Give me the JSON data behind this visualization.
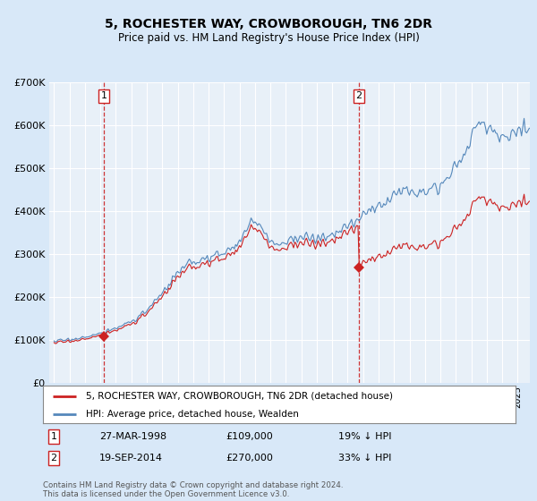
{
  "title": "5, ROCHESTER WAY, CROWBOROUGH, TN6 2DR",
  "subtitle": "Price paid vs. HM Land Registry's House Price Index (HPI)",
  "legend_line1": "5, ROCHESTER WAY, CROWBOROUGH, TN6 2DR (detached house)",
  "legend_line2": "HPI: Average price, detached house, Wealden",
  "annotation1": {
    "label": "1",
    "date": "27-MAR-1998",
    "price": 109000,
    "note": "19% ↓ HPI",
    "x_year": 1998.23
  },
  "annotation2": {
    "label": "2",
    "date": "19-SEP-2014",
    "price": 270000,
    "note": "33% ↓ HPI",
    "x_year": 2014.72
  },
  "footer": "Contains HM Land Registry data © Crown copyright and database right 2024.\nThis data is licensed under the Open Government Licence v3.0.",
  "hpi_color": "#5588bb",
  "price_color": "#cc2222",
  "background_color": "#d8e8f8",
  "plot_bg_color": "#e8f0f8",
  "grid_color": "#ffffff",
  "ylim": [
    0,
    700000
  ],
  "yticks": [
    0,
    100000,
    200000,
    300000,
    400000,
    500000,
    600000,
    700000
  ],
  "ytick_labels": [
    "£0",
    "£100K",
    "£200K",
    "£300K",
    "£400K",
    "£500K",
    "£600K",
    "£700K"
  ],
  "xlim_start": 1994.7,
  "xlim_end": 2025.8,
  "p1_year": 1998.23,
  "p1_price": 109000,
  "p2_year": 2014.72,
  "p2_price": 270000
}
